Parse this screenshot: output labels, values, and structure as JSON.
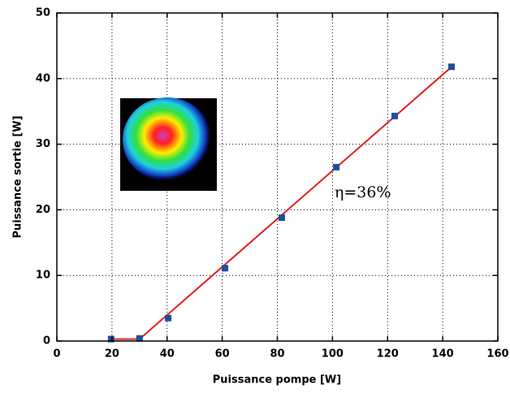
{
  "chart_data": {
    "type": "scatter",
    "x_label": "Puissance pompe [W]",
    "y_label": "Puissance sortie [W]",
    "annotation": "η=36%",
    "xlim": [
      0,
      160
    ],
    "xticks": [
      0,
      20,
      40,
      60,
      80,
      100,
      120,
      140,
      160
    ],
    "ylim": [
      0,
      50
    ],
    "yticks": [
      0,
      10,
      20,
      30,
      40,
      50
    ],
    "grid": true,
    "series": [
      {
        "mode": "markers",
        "color": "#1f4e9c",
        "x": [
          19.7,
          30,
          40.4,
          61,
          81.6,
          101.4,
          122.6,
          143.2
        ],
        "values": [
          0.3,
          0.4,
          3.5,
          11.1,
          18.8,
          26.5,
          34.3,
          41.8
        ]
      },
      {
        "mode": "lines",
        "color": "#e02020",
        "x": [
          20,
          30,
          143
        ],
        "values": [
          0.3,
          0.3,
          41.7
        ]
      }
    ]
  }
}
